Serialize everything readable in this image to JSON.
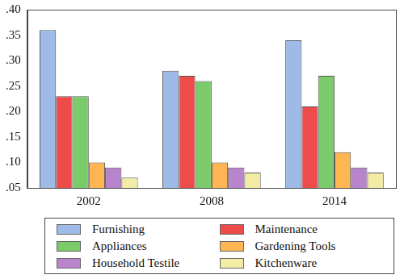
{
  "chart_data": {
    "type": "bar",
    "categories": [
      "2002",
      "2008",
      "2014"
    ],
    "series": [
      {
        "name": "Furnishing",
        "color": "#9dbbe6",
        "values": [
          0.36,
          0.28,
          0.34
        ]
      },
      {
        "name": "Maintenance",
        "color": "#ee4b4b",
        "values": [
          0.23,
          0.27,
          0.21
        ]
      },
      {
        "name": "Appliances",
        "color": "#7ccb6a",
        "values": [
          0.23,
          0.26,
          0.27
        ]
      },
      {
        "name": "Gardening Tools",
        "color": "#ffb652",
        "values": [
          0.1,
          0.1,
          0.12
        ]
      },
      {
        "name": "Household Testile",
        "color": "#b884cc",
        "values": [
          0.09,
          0.09,
          0.09
        ]
      },
      {
        "name": "Kitchenware",
        "color": "#f2eca4",
        "values": [
          0.07,
          0.08,
          0.08
        ]
      }
    ],
    "ylim": [
      0.05,
      0.4
    ],
    "yticks": [
      {
        "value": 0.05,
        "label": ".05"
      },
      {
        "value": 0.1,
        "label": ".10"
      },
      {
        "value": 0.15,
        "label": ".15"
      },
      {
        "value": 0.2,
        "label": ".20"
      },
      {
        "value": 0.25,
        "label": ".25"
      },
      {
        "value": 0.3,
        "label": ".30"
      },
      {
        "value": 0.35,
        "label": ".35"
      },
      {
        "value": 0.4,
        "label": ".40"
      }
    ],
    "grid": false,
    "legend": "bottom"
  }
}
